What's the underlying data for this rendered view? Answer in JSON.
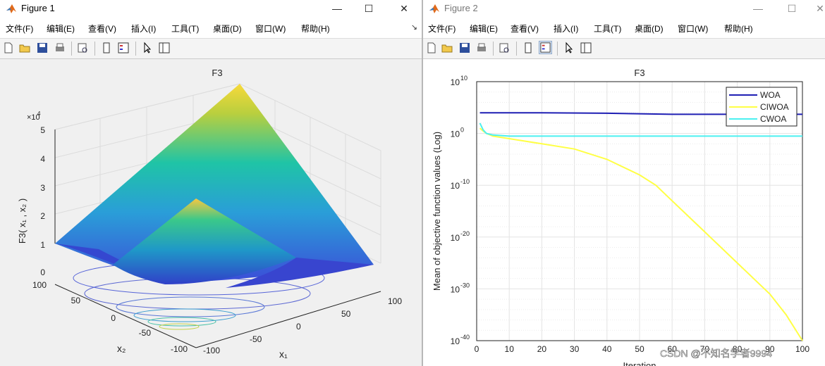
{
  "figure1": {
    "window_title": "Figure 1",
    "controls": {
      "minimize": "—",
      "maximize": "☐",
      "close": "✕"
    },
    "menu": [
      "文件(F)",
      "编辑(E)",
      "查看(V)",
      "插入(I)",
      "工具(T)",
      "桌面(D)",
      "窗口(W)",
      "帮助(H)"
    ],
    "menu_overflow": "↘",
    "toolbar_icons": [
      "new-figure-icon",
      "open-file-icon",
      "save-icon",
      "print-icon",
      "print-preview-icon",
      "dock-icon",
      "property-inspector-icon",
      "pointer-icon",
      "plot-browser-icon"
    ],
    "plot": {
      "title": "F3",
      "zlabel": "F3( x₁ , x₂ )",
      "xlabel": "x₁",
      "ylabel": "x₂",
      "z_ticks": [
        "0",
        "1",
        "2",
        "3",
        "4",
        "5"
      ],
      "z_exponent_base": "×10",
      "z_exponent": "4",
      "x_ticks": [
        "-100",
        "-50",
        "0",
        "50",
        "100"
      ],
      "y_ticks": [
        "100",
        "50",
        "0",
        "-50",
        "-100"
      ]
    }
  },
  "figure2": {
    "window_title": "Figure 2",
    "controls": {
      "minimize": "—",
      "maximize": "☐",
      "close": "✕"
    },
    "menu": [
      "文件(F)",
      "编辑(E)",
      "查看(V)",
      "插入(I)",
      "工具(T)",
      "桌面(D)",
      "窗口(W)",
      "帮助(H)"
    ],
    "toolbar_icons": [
      "new-figure-icon",
      "open-file-icon",
      "save-icon",
      "print-icon",
      "print-preview-icon",
      "dock-icon",
      "property-inspector-icon",
      "pointer-icon",
      "plot-browser-icon"
    ],
    "watermark": "CSDN @不知名学者9994",
    "chart_data": {
      "type": "line",
      "title": "F3",
      "ylabel": "Mean of objective function values (Log)",
      "xlabel": "Iteration",
      "xlim": [
        0,
        100
      ],
      "ylim": [
        1e-40,
        10000000000.0
      ],
      "yscale": "log",
      "grid": true,
      "legend_position": "top-right",
      "x_ticks": [
        "0",
        "10",
        "20",
        "30",
        "40",
        "50",
        "60",
        "70",
        "80",
        "90",
        "100"
      ],
      "y_ticks": [
        {
          "base": "10",
          "exp": "10",
          "value": 10
        },
        {
          "base": "10",
          "exp": "0",
          "value": 0
        },
        {
          "base": "10",
          "exp": "-10",
          "value": -10
        },
        {
          "base": "10",
          "exp": "-20",
          "value": -20
        },
        {
          "base": "10",
          "exp": "-30",
          "value": -30
        },
        {
          "base": "10",
          "exp": "-40",
          "value": -40
        }
      ],
      "series": [
        {
          "name": "WOA",
          "color": "#1f1fb4",
          "x": [
            1,
            20,
            40,
            60,
            80,
            100
          ],
          "y": [
            10000.0,
            10000.0,
            8000.0,
            5000.0,
            5000.0,
            5000.0
          ]
        },
        {
          "name": "CIWOA",
          "color": "#ffff45",
          "x": [
            1,
            2,
            3,
            5,
            10,
            20,
            30,
            40,
            50,
            55,
            60,
            65,
            70,
            75,
            80,
            85,
            90,
            95,
            100
          ],
          "y": [
            10,
            3,
            1,
            0.3,
            0.1,
            0.01,
            0.001,
            1e-05,
            1e-08,
            1e-10,
            1e-13,
            1e-16,
            1e-19,
            1e-22,
            1e-25,
            1e-28,
            1e-31,
            1e-35,
            1e-40
          ]
        },
        {
          "name": "CWOA",
          "color": "#4cf0f0",
          "x": [
            1,
            2,
            3,
            5,
            10,
            20,
            40,
            60,
            80,
            100
          ],
          "y": [
            100,
            5,
            1,
            0.5,
            0.3,
            0.3,
            0.3,
            0.3,
            0.3,
            0.3
          ]
        }
      ]
    }
  }
}
